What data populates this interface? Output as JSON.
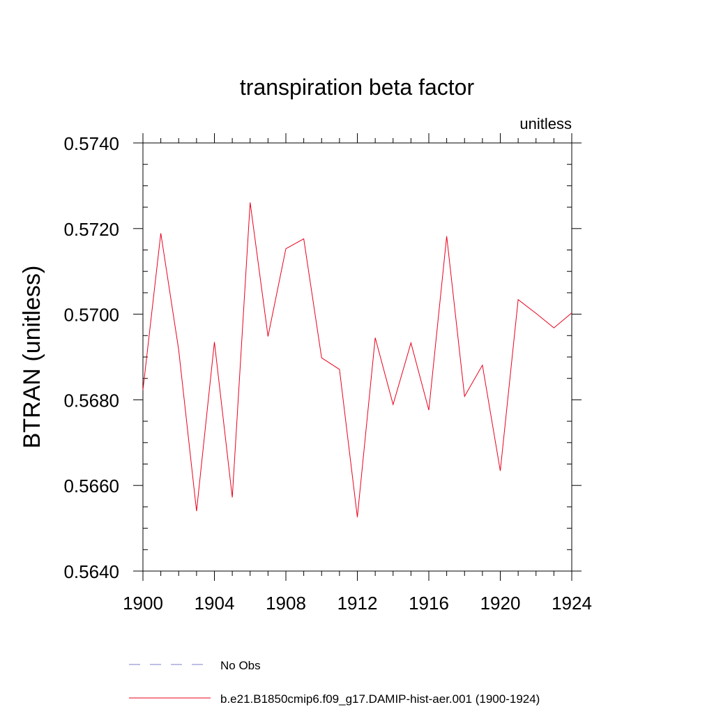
{
  "chart_data": {
    "type": "line",
    "title": "transpiration beta factor",
    "units_label": "unitless",
    "xlabel": "",
    "ylabel": "BTRAN  (unitless)",
    "xlim": [
      1900,
      1924
    ],
    "ylim": [
      0.564,
      0.574
    ],
    "x_ticks": [
      1900,
      1904,
      1908,
      1912,
      1916,
      1920,
      1924
    ],
    "x_tick_labels": [
      "1900",
      "1904",
      "1908",
      "1912",
      "1916",
      "1920",
      "1924"
    ],
    "y_ticks": [
      0.564,
      0.566,
      0.568,
      0.57,
      0.572,
      0.574
    ],
    "y_tick_labels": [
      "0.5640",
      "0.5660",
      "0.5680",
      "0.5700",
      "0.5720",
      "0.5740"
    ],
    "grid": false,
    "legend_position": "bottom",
    "series": [
      {
        "name": "No Obs",
        "color": "#7d7dc8",
        "dashed": true,
        "x": [],
        "values": []
      },
      {
        "name": "b.e21.B1850cmip6.f09_g17.DAMIP-hist-aer.001 (1900-1924)",
        "color": "#e8001c",
        "dashed": false,
        "x": [
          1900,
          1901,
          1902,
          1903,
          1904,
          1905,
          1906,
          1907,
          1908,
          1909,
          1910,
          1911,
          1912,
          1913,
          1914,
          1915,
          1916,
          1917,
          1918,
          1919,
          1920,
          1921,
          1922,
          1923,
          1924
        ],
        "values": [
          0.56823,
          0.57189,
          0.56917,
          0.5654,
          0.56935,
          0.56572,
          0.57261,
          0.56948,
          0.57153,
          0.57176,
          0.56898,
          0.56871,
          0.56526,
          0.56945,
          0.56789,
          0.56933,
          0.56776,
          0.57182,
          0.56808,
          0.56881,
          0.56634,
          0.57034,
          0.57002,
          0.56968,
          0.57003
        ]
      }
    ]
  }
}
